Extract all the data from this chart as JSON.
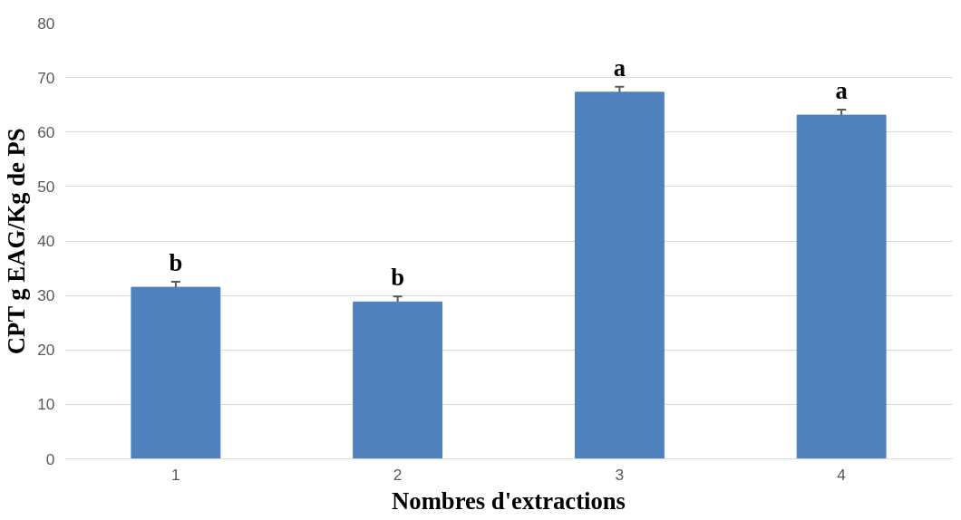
{
  "chart_data": {
    "type": "bar",
    "xlabel": "Nombres d'extractions",
    "ylabel": "CPT g EAG/Kg de PS",
    "categories": [
      "1",
      "2",
      "3",
      "4"
    ],
    "values": [
      31.5,
      28.8,
      67.3,
      63.1
    ],
    "errors": [
      1.0,
      1.0,
      1.0,
      1.0
    ],
    "color": "#4f81bd",
    "ylim": [
      0,
      80
    ],
    "yticks": [
      0,
      10,
      20,
      30,
      40,
      50,
      60,
      70,
      80
    ],
    "grid": "y",
    "annotations": [
      "b",
      "b",
      "a",
      "a"
    ]
  }
}
